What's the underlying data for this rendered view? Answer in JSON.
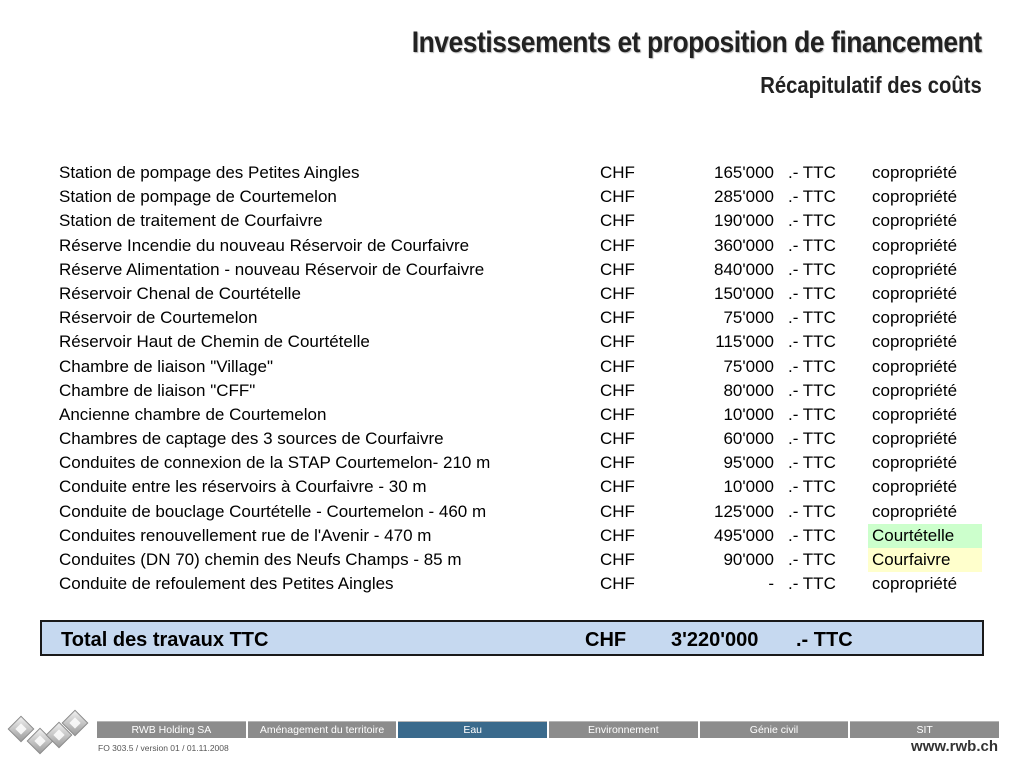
{
  "header": {
    "title": "Investissements et proposition de financement",
    "subtitle": "Récapitulatif des coûts"
  },
  "rows": [
    {
      "label": "Station de pompage des Petites Aingles",
      "currency": "CHF",
      "amount": "165'000",
      "suffix": ".- TTC",
      "note": "copropriété",
      "note_bg": ""
    },
    {
      "label": "Station de pompage de Courtemelon",
      "currency": "CHF",
      "amount": "285'000",
      "suffix": ".- TTC",
      "note": "copropriété",
      "note_bg": ""
    },
    {
      "label": "Station de traitement de Courfaivre",
      "currency": "CHF",
      "amount": "190'000",
      "suffix": ".- TTC",
      "note": "copropriété",
      "note_bg": ""
    },
    {
      "label": "Réserve Incendie du nouveau Réservoir de Courfaivre",
      "currency": "CHF",
      "amount": "360'000",
      "suffix": ".- TTC",
      "note": "copropriété",
      "note_bg": ""
    },
    {
      "label": "Réserve Alimentation - nouveau Réservoir de Courfaivre",
      "currency": "CHF",
      "amount": "840'000",
      "suffix": ".- TTC",
      "note": "copropriété",
      "note_bg": ""
    },
    {
      "label": "Réservoir Chenal de Courtételle",
      "currency": "CHF",
      "amount": "150'000",
      "suffix": ".- TTC",
      "note": "copropriété",
      "note_bg": ""
    },
    {
      "label": "Réservoir de Courtemelon",
      "currency": "CHF",
      "amount": "75'000",
      "suffix": ".- TTC",
      "note": "copropriété",
      "note_bg": ""
    },
    {
      "label": "Réservoir Haut de Chemin de Courtételle",
      "currency": "CHF",
      "amount": "115'000",
      "suffix": ".- TTC",
      "note": "copropriété",
      "note_bg": ""
    },
    {
      "label": "Chambre de liaison \"Village\"",
      "currency": "CHF",
      "amount": "75'000",
      "suffix": ".- TTC",
      "note": "copropriété",
      "note_bg": ""
    },
    {
      "label": "Chambre de liaison \"CFF\"",
      "currency": "CHF",
      "amount": "80'000",
      "suffix": ".- TTC",
      "note": "copropriété",
      "note_bg": ""
    },
    {
      "label": "Ancienne chambre de Courtemelon",
      "currency": "CHF",
      "amount": "10'000",
      "suffix": ".- TTC",
      "note": "copropriété",
      "note_bg": ""
    },
    {
      "label": "Chambres de captage des 3 sources de Courfaivre",
      "currency": "CHF",
      "amount": "60'000",
      "suffix": ".- TTC",
      "note": "copropriété",
      "note_bg": ""
    },
    {
      "label": "Conduites de connexion de la STAP Courtemelon- 210 m",
      "currency": "CHF",
      "amount": "95'000",
      "suffix": ".- TTC",
      "note": "copropriété",
      "note_bg": ""
    },
    {
      "label": "Conduite entre les réservoirs à Courfaivre - 30 m",
      "currency": "CHF",
      "amount": "10'000",
      "suffix": ".- TTC",
      "note": "copropriété",
      "note_bg": ""
    },
    {
      "label": "Conduite de bouclage Courtételle - Courtemelon - 460 m",
      "currency": "CHF",
      "amount": "125'000",
      "suffix": ".- TTC",
      "note": "copropriété",
      "note_bg": ""
    },
    {
      "label": "Conduites renouvellement rue de l'Avenir - 470 m",
      "currency": "CHF",
      "amount": "495'000",
      "suffix": ".- TTC",
      "note": "Courtételle",
      "note_bg": "#ccffcc"
    },
    {
      "label": "Conduites (DN 70) chemin des Neufs Champs - 85 m",
      "currency": "CHF",
      "amount": "90'000",
      "suffix": ".- TTC",
      "note": "Courfaivre",
      "note_bg": "#ffffcc"
    },
    {
      "label": "Conduite de refoulement des Petites Aingles",
      "currency": "CHF",
      "amount": "-",
      "suffix": ".- TTC",
      "note": "copropriété",
      "note_bg": ""
    }
  ],
  "total": {
    "label": "Total des travaux TTC",
    "currency": "CHF",
    "amount": "3'220'000",
    "suffix": ".- TTC",
    "bg_color": "#c6d9f0"
  },
  "footer": {
    "logo_icon": "rwb-cubes-logo-icon",
    "nav": [
      {
        "label": "RWB Holding SA",
        "active": false
      },
      {
        "label": "Aménagement du territoire",
        "active": false
      },
      {
        "label": "Eau",
        "active": true
      },
      {
        "label": "Environnement",
        "active": false
      },
      {
        "label": "Génie civil",
        "active": false
      },
      {
        "label": "SIT",
        "active": false
      }
    ],
    "doc_ref": "FO 303.5 / version 01 / 01.11.2008",
    "url": "www.rwb.ch",
    "active_color": "#3a6a8c",
    "inactive_color": "#8c8c8c"
  }
}
